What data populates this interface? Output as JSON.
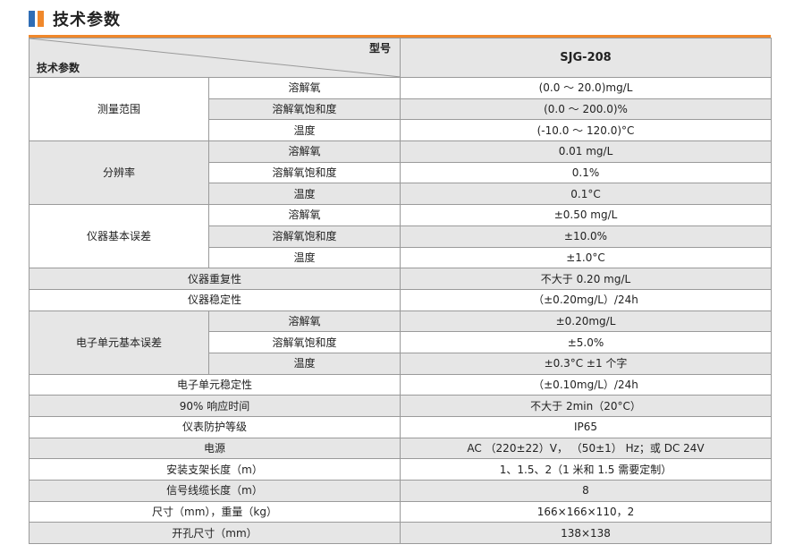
{
  "section": {
    "title": "技术参数"
  },
  "table": {
    "corner_top": "型号",
    "corner_bottom": "技术参数",
    "model": "SJG-208",
    "groups": {
      "range": {
        "label": "测量范围",
        "rows": [
          {
            "sub": "溶解氧",
            "value": "(0.0 ～ 20.0)mg/L"
          },
          {
            "sub": "溶解氧饱和度",
            "value": "(0.0 ～ 200.0)%"
          },
          {
            "sub": "温度",
            "value": "(-10.0 ～ 120.0)°C"
          }
        ]
      },
      "resolution": {
        "label": "分辨率",
        "rows": [
          {
            "sub": "溶解氧",
            "value": "0.01 mg/L"
          },
          {
            "sub": "溶解氧饱和度",
            "value": "0.1%"
          },
          {
            "sub": "温度",
            "value": "0.1°C"
          }
        ]
      },
      "basic_error": {
        "label": "仪器基本误差",
        "rows": [
          {
            "sub": "溶解氧",
            "value": "±0.50 mg/L"
          },
          {
            "sub": "溶解氧饱和度",
            "value": "±10.0%"
          },
          {
            "sub": "温度",
            "value": "±1.0°C"
          }
        ]
      },
      "repeatability": {
        "label": "仪器重复性",
        "value": "不大于 0.20 mg/L"
      },
      "stability": {
        "label": "仪器稳定性",
        "value": "（±0.20mg/L）/24h"
      },
      "electronic_error": {
        "label": "电子单元基本误差",
        "rows": [
          {
            "sub": "溶解氧",
            "value": "±0.20mg/L"
          },
          {
            "sub": "溶解氧饱和度",
            "value": "±5.0%"
          },
          {
            "sub": "温度",
            "value": "±0.3°C ±1 个字"
          }
        ]
      },
      "electronic_stability": {
        "label": "电子单元稳定性",
        "value": "（±0.10mg/L）/24h"
      },
      "response_time": {
        "label": "90% 响应时间",
        "value": "不大于 2min（20°C）"
      },
      "protection": {
        "label": "仪表防护等级",
        "value": "IP65"
      },
      "power": {
        "label": "电源",
        "value": "AC （220±22）V， （50±1） Hz；或 DC 24V"
      },
      "bracket_length": {
        "label": "安装支架长度（m）",
        "value": "1、1.5、2（1 米和 1.5 需要定制）"
      },
      "cable_length": {
        "label": "信号线缆长度（m）",
        "value": "8"
      },
      "size_weight": {
        "label": "尺寸（mm），重量（kg）",
        "value": "166×166×110，2"
      },
      "cutout": {
        "label": "开孔尺寸（mm）",
        "value": "138×138"
      }
    }
  }
}
